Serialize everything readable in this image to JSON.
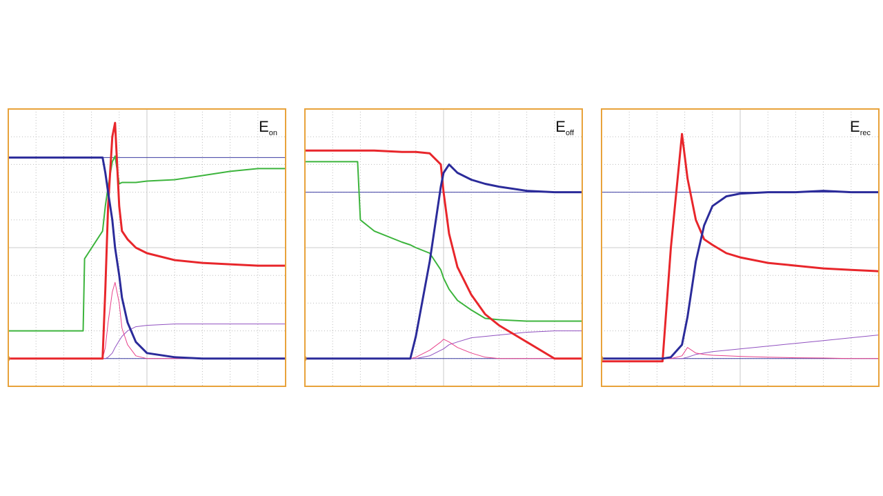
{
  "chart_data": [
    {
      "type": "line",
      "title": [
        "E",
        "on"
      ],
      "xlim": [
        0,
        10
      ],
      "ylim": [
        0,
        10
      ],
      "grid": true,
      "reference_lines": [
        1.0,
        8.25
      ],
      "x": [
        0,
        2.7,
        2.75,
        3.4,
        3.5,
        3.6,
        3.75,
        3.85,
        4.0,
        4.1,
        4.3,
        4.6,
        5,
        6,
        7,
        8,
        9,
        10
      ],
      "series": [
        {
          "color": "#3cb43c",
          "line_width": 2,
          "values": [
            2.0,
            2.0,
            4.6,
            5.6,
            6.5,
            7.2,
            8.1,
            8.3,
            7.3,
            7.35,
            7.35,
            7.35,
            7.4,
            7.45,
            7.6,
            7.75,
            7.85,
            7.85
          ]
        },
        {
          "color": "#9050c0",
          "line_width": 1,
          "values": [
            1.0,
            1.0,
            1.0,
            1.0,
            1.0,
            1.05,
            1.2,
            1.4,
            1.65,
            1.8,
            2.0,
            2.15,
            2.2,
            2.25,
            2.25,
            2.25,
            2.25,
            2.25
          ]
        },
        {
          "color": "#e8408a",
          "line_width": 1,
          "values": [
            1.0,
            1.0,
            1.0,
            1.0,
            1.4,
            2.3,
            3.4,
            3.75,
            3.0,
            2.1,
            1.5,
            1.1,
            1.0,
            1.0,
            1.0,
            1.0,
            1.0,
            1.0
          ]
        },
        {
          "color": "#e8262b",
          "line_width": 3,
          "values": [
            1.0,
            1.0,
            1.0,
            1.0,
            3.5,
            6.5,
            9.0,
            9.5,
            6.5,
            5.6,
            5.3,
            5.0,
            4.8,
            4.55,
            4.45,
            4.4,
            4.35,
            4.35
          ]
        },
        {
          "color": "#2b2b9a",
          "line_width": 3,
          "values": [
            8.25,
            8.25,
            8.25,
            8.25,
            7.7,
            7.0,
            6.0,
            5.0,
            4.0,
            3.2,
            2.3,
            1.6,
            1.2,
            1.05,
            1.0,
            1.0,
            1.0,
            1.0
          ]
        }
      ]
    },
    {
      "type": "line",
      "title": [
        "E",
        "off"
      ],
      "xlim": [
        0,
        10
      ],
      "ylim": [
        0,
        10
      ],
      "grid": true,
      "reference_lines": [
        1.0,
        7.0
      ],
      "x": [
        0,
        1.9,
        2.0,
        2.5,
        3.5,
        3.8,
        4.0,
        4.5,
        4.9,
        5.0,
        5.2,
        5.5,
        6.0,
        6.5,
        7,
        8,
        9,
        10
      ],
      "series": [
        {
          "color": "#3cb43c",
          "line_width": 2,
          "values": [
            8.1,
            8.1,
            6.0,
            5.6,
            5.2,
            5.1,
            5.0,
            4.8,
            4.2,
            3.9,
            3.5,
            3.1,
            2.75,
            2.45,
            2.4,
            2.35,
            2.35,
            2.35
          ]
        },
        {
          "color": "#9050c0",
          "line_width": 1,
          "values": [
            1.0,
            1.0,
            1.0,
            1.0,
            1.0,
            1.0,
            1.0,
            1.1,
            1.3,
            1.35,
            1.5,
            1.6,
            1.75,
            1.8,
            1.85,
            1.95,
            2.0,
            2.0
          ]
        },
        {
          "color": "#e8408a",
          "line_width": 1,
          "values": [
            1.0,
            1.0,
            1.0,
            1.0,
            1.0,
            1.0,
            1.05,
            1.3,
            1.6,
            1.7,
            1.6,
            1.4,
            1.2,
            1.05,
            1.0,
            1.0,
            1.0,
            1.0
          ]
        },
        {
          "color": "#e8262b",
          "line_width": 3,
          "values": [
            8.5,
            8.5,
            8.5,
            8.5,
            8.45,
            8.45,
            8.45,
            8.4,
            8.0,
            7.0,
            5.5,
            4.3,
            3.3,
            2.6,
            2.2,
            1.6,
            1.0,
            1.0
          ]
        },
        {
          "color": "#2b2b9a",
          "line_width": 3,
          "values": [
            1.0,
            1.0,
            1.0,
            1.0,
            1.0,
            1.0,
            1.8,
            4.5,
            7.2,
            7.7,
            8.0,
            7.7,
            7.45,
            7.3,
            7.2,
            7.05,
            7.0,
            7.0
          ]
        }
      ]
    },
    {
      "type": "line",
      "title": [
        "E",
        "rec"
      ],
      "xlim": [
        0,
        10
      ],
      "ylim": [
        0,
        10
      ],
      "grid": true,
      "reference_lines": [
        1.0,
        7.0
      ],
      "x": [
        0,
        2.2,
        2.5,
        2.9,
        3.1,
        3.4,
        3.7,
        4.0,
        4.5,
        5,
        6,
        7,
        8,
        9,
        10
      ],
      "series": [
        {
          "color": "#9050c0",
          "line_width": 1,
          "values": [
            1.0,
            1.0,
            1.0,
            1.0,
            1.05,
            1.15,
            1.2,
            1.25,
            1.3,
            1.35,
            1.45,
            1.55,
            1.65,
            1.75,
            1.85
          ]
        },
        {
          "color": "#e8408a",
          "line_width": 1,
          "values": [
            1.0,
            1.0,
            1.0,
            1.1,
            1.4,
            1.2,
            1.15,
            1.12,
            1.1,
            1.08,
            1.05,
            1.03,
            1.02,
            1.0,
            1.0
          ]
        },
        {
          "color": "#e8262b",
          "line_width": 3,
          "values": [
            0.9,
            0.9,
            5.0,
            9.1,
            7.5,
            6.0,
            5.3,
            5.1,
            4.8,
            4.65,
            4.45,
            4.35,
            4.25,
            4.2,
            4.15
          ]
        },
        {
          "color": "#2b2b9a",
          "line_width": 3,
          "values": [
            1.0,
            1.0,
            1.05,
            1.5,
            2.5,
            4.5,
            5.8,
            6.5,
            6.85,
            6.95,
            7.0,
            7.0,
            7.05,
            7.0,
            7.0
          ]
        }
      ]
    }
  ]
}
